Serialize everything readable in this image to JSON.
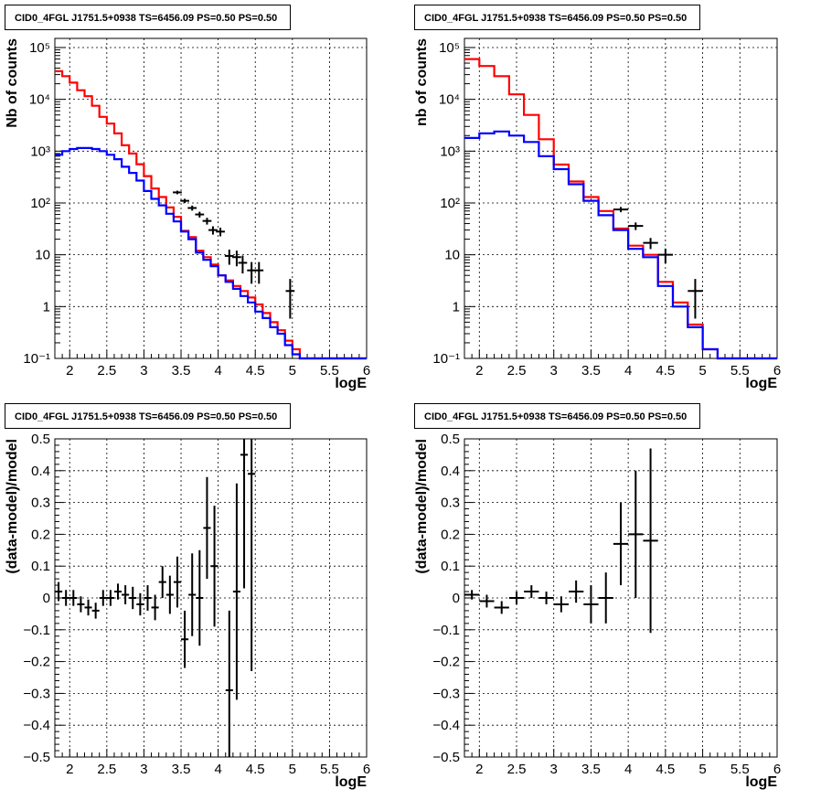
{
  "chart_data": [
    {
      "type": "histogram-log",
      "title": "CID0_4FGL J1751.5+0938 TS=6456.09 PS=0.50 PS=0.50",
      "xlabel": "logE",
      "ylabel": "Nb of counts",
      "xlim": [
        1.8,
        6.0
      ],
      "ylim": [
        0.1,
        150000
      ],
      "ylog": true,
      "grid": true,
      "xticks": [
        "2",
        "2.5",
        "3",
        "3.5",
        "4",
        "4.5",
        "5",
        "5.5",
        "6"
      ],
      "yticks": [
        "10⁻¹",
        "1",
        "10",
        "10²",
        "10³",
        "10⁴",
        "10⁵"
      ],
      "bin_edges": [
        1.8,
        1.9,
        2.0,
        2.1,
        2.2,
        2.3,
        2.4,
        2.5,
        2.6,
        2.7,
        2.8,
        2.9,
        3.0,
        3.1,
        3.2,
        3.3,
        3.4,
        3.5,
        3.6,
        3.7,
        3.8,
        3.9,
        4.0,
        4.1,
        4.2,
        4.3,
        4.4,
        4.5,
        4.6,
        4.7,
        4.8,
        4.9,
        5.0,
        5.1,
        5.2,
        5.3,
        5.4,
        5.5,
        5.6,
        5.7,
        5.8,
        5.9,
        6.0
      ],
      "series": [
        {
          "color": "#ff0000",
          "values": [
            35000,
            28000,
            21000,
            15000,
            11500,
            7500,
            4600,
            3400,
            2200,
            1300,
            900,
            560,
            330,
            190,
            130,
            82,
            54,
            29,
            22,
            12,
            9,
            6.5,
            4,
            3.2,
            2.5,
            2,
            1.5,
            1.1,
            0.75,
            0.5,
            0.35,
            0.22,
            0.15,
            0.1,
            0.1,
            0.1,
            0.1,
            0.1,
            0.1,
            0.1,
            0.1,
            0.1
          ]
        },
        {
          "color": "#0000ff",
          "values": [
            850,
            1000,
            1100,
            1150,
            1150,
            1100,
            1000,
            850,
            700,
            500,
            380,
            270,
            170,
            120,
            90,
            62,
            44,
            28,
            20,
            11,
            8,
            6,
            4,
            3,
            2.2,
            1.6,
            1.2,
            0.8,
            0.6,
            0.4,
            0.3,
            0.18,
            0.12,
            0.1,
            0.1,
            0.1,
            0.1,
            0.1,
            0.1,
            0.1,
            0.1,
            0.1
          ]
        }
      ],
      "data_points": [
        {
          "x": 3.45,
          "y": 160
        },
        {
          "x": 3.55,
          "y": 110
        },
        {
          "x": 3.65,
          "y": 80
        },
        {
          "x": 3.75,
          "y": 60
        },
        {
          "x": 3.85,
          "y": 45
        },
        {
          "x": 3.93,
          "y": 30
        },
        {
          "x": 4.03,
          "y": 28
        },
        {
          "x": 4.15,
          "y": 9.5
        },
        {
          "x": 4.25,
          "y": 9
        },
        {
          "x": 4.33,
          "y": 7
        },
        {
          "x": 4.45,
          "y": 5
        },
        {
          "x": 4.55,
          "y": 5
        },
        {
          "x": 4.97,
          "y": 2
        }
      ]
    },
    {
      "type": "histogram-log",
      "title": "CID0_4FGL J1751.5+0938 TS=6456.09 PS=0.50 PS=0.50",
      "xlabel": "logE",
      "ylabel": "nb of counts",
      "xlim": [
        1.8,
        6.0
      ],
      "ylim": [
        0.1,
        150000
      ],
      "ylog": true,
      "grid": true,
      "xticks": [
        "2",
        "2.5",
        "3",
        "3.5",
        "4",
        "4.5",
        "5",
        "5.5",
        "6"
      ],
      "yticks": [
        "10⁻¹",
        "1",
        "10",
        "10²",
        "10³",
        "10⁴",
        "10⁵"
      ],
      "bin_edges": [
        1.8,
        2.0,
        2.2,
        2.4,
        2.6,
        2.8,
        3.0,
        3.2,
        3.4,
        3.6,
        3.8,
        4.0,
        4.2,
        4.4,
        4.6,
        4.8,
        5.0,
        5.2,
        5.4,
        5.6,
        5.8,
        6.0
      ],
      "series": [
        {
          "color": "#ff0000",
          "values": [
            60000,
            44000,
            28000,
            12500,
            5000,
            1700,
            550,
            260,
            130,
            70,
            32,
            15,
            10,
            3,
            1.2,
            0.45,
            0.15,
            0.1,
            0.1,
            0.1,
            0.1
          ]
        },
        {
          "color": "#0000ff",
          "values": [
            1800,
            2200,
            2400,
            2000,
            1500,
            800,
            450,
            230,
            110,
            58,
            30,
            13,
            9,
            2.5,
            1,
            0.4,
            0.15,
            0.1,
            0.1,
            0.1,
            0.1
          ]
        }
      ],
      "data_points": [
        {
          "x": 3.9,
          "y": 75
        },
        {
          "x": 4.1,
          "y": 36
        },
        {
          "x": 4.3,
          "y": 17
        },
        {
          "x": 4.5,
          "y": 10
        },
        {
          "x": 4.9,
          "y": 2
        }
      ]
    },
    {
      "type": "residual",
      "title": "CID0_4FGL J1751.5+0938 TS=6456.09 PS=0.50 PS=0.50",
      "xlabel": "logE",
      "ylabel": "(data-model)/model",
      "xlim": [
        1.8,
        6.0
      ],
      "ylim": [
        -0.5,
        0.5
      ],
      "grid": true,
      "xticks": [
        "2",
        "2.5",
        "3",
        "3.5",
        "4",
        "4.5",
        "5",
        "5.5",
        "6"
      ],
      "yticks": [
        "−0.5",
        "−0.4",
        "−0.3",
        "−0.2",
        "−0.1",
        "0",
        "0.1",
        "0.2",
        "0.3",
        "0.4",
        "0.5"
      ],
      "points": [
        {
          "x": 1.85,
          "y": 0.02,
          "e": 0.03
        },
        {
          "x": 1.95,
          "y": 0.0,
          "e": 0.025
        },
        {
          "x": 2.05,
          "y": 0.0,
          "e": 0.025
        },
        {
          "x": 2.15,
          "y": -0.02,
          "e": 0.025
        },
        {
          "x": 2.25,
          "y": -0.03,
          "e": 0.025
        },
        {
          "x": 2.35,
          "y": -0.04,
          "e": 0.025
        },
        {
          "x": 2.45,
          "y": 0.0,
          "e": 0.025
        },
        {
          "x": 2.55,
          "y": 0.0,
          "e": 0.025
        },
        {
          "x": 2.65,
          "y": 0.02,
          "e": 0.025
        },
        {
          "x": 2.75,
          "y": 0.01,
          "e": 0.03
        },
        {
          "x": 2.85,
          "y": 0.0,
          "e": 0.035
        },
        {
          "x": 2.95,
          "y": -0.02,
          "e": 0.035
        },
        {
          "x": 3.05,
          "y": 0.0,
          "e": 0.04
        },
        {
          "x": 3.15,
          "y": -0.03,
          "e": 0.04
        },
        {
          "x": 3.25,
          "y": 0.05,
          "e": 0.05
        },
        {
          "x": 3.35,
          "y": 0.01,
          "e": 0.06
        },
        {
          "x": 3.45,
          "y": 0.05,
          "e": 0.08
        },
        {
          "x": 3.55,
          "y": -0.13,
          "e": 0.09
        },
        {
          "x": 3.65,
          "y": 0.01,
          "e": 0.13
        },
        {
          "x": 3.75,
          "y": 0.0,
          "e": 0.15
        },
        {
          "x": 3.85,
          "y": 0.22,
          "e": 0.16
        },
        {
          "x": 3.95,
          "y": 0.1,
          "e": 0.19
        },
        {
          "x": 4.15,
          "y": -0.29,
          "e": 0.25
        },
        {
          "x": 4.25,
          "y": 0.02,
          "e": 0.34
        },
        {
          "x": 4.35,
          "y": 0.45,
          "e": 0.42
        },
        {
          "x": 4.45,
          "y": 0.39,
          "e": 0.62
        }
      ]
    },
    {
      "type": "residual",
      "title": "CID0_4FGL J1751.5+0938 TS=6456.09 PS=0.50 PS=0.50",
      "xlabel": "logE",
      "ylabel": "(data-model)/model",
      "xlim": [
        1.8,
        6.0
      ],
      "ylim": [
        -0.5,
        0.5
      ],
      "grid": true,
      "xticks": [
        "2",
        "2.5",
        "3",
        "3.5",
        "4",
        "4.5",
        "5",
        "5.5",
        "6"
      ],
      "yticks": [
        "−0.5",
        "−0.4",
        "−0.3",
        "−0.2",
        "−0.1",
        "0",
        "0.1",
        "0.2",
        "0.3",
        "0.4",
        "0.5"
      ],
      "points": [
        {
          "x": 1.9,
          "y": 0.01,
          "e": 0.015
        },
        {
          "x": 2.1,
          "y": -0.01,
          "e": 0.02
        },
        {
          "x": 2.3,
          "y": -0.03,
          "e": 0.02
        },
        {
          "x": 2.5,
          "y": 0.0,
          "e": 0.02
        },
        {
          "x": 2.7,
          "y": 0.02,
          "e": 0.02
        },
        {
          "x": 2.9,
          "y": 0.0,
          "e": 0.02
        },
        {
          "x": 3.1,
          "y": -0.02,
          "e": 0.025
        },
        {
          "x": 3.3,
          "y": 0.02,
          "e": 0.035
        },
        {
          "x": 3.5,
          "y": -0.02,
          "e": 0.06
        },
        {
          "x": 3.7,
          "y": 0.0,
          "e": 0.08
        },
        {
          "x": 3.9,
          "y": 0.17,
          "e": 0.13
        },
        {
          "x": 4.1,
          "y": 0.2,
          "e": 0.2
        },
        {
          "x": 4.3,
          "y": 0.18,
          "e": 0.29
        }
      ]
    }
  ]
}
